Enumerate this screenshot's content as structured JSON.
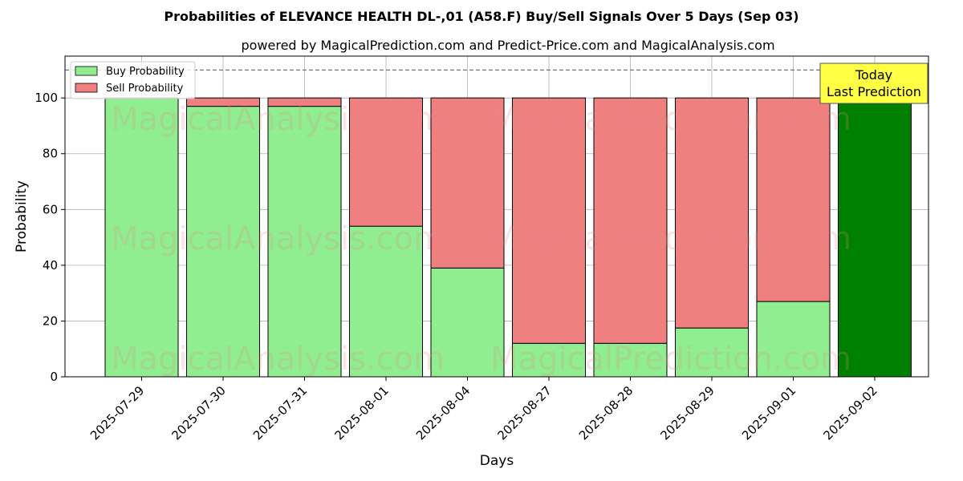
{
  "chart_data": {
    "type": "bar",
    "stacked": true,
    "title": "Probabilities of ELEVANCE HEALTH  DL-,01 (A58.F) Buy/Sell Signals Over 5 Days (Sep 03)",
    "subtitle": "powered by MagicalPrediction.com and Predict-Price.com and MagicalAnalysis.com",
    "xlabel": "Days",
    "ylabel": "Probability",
    "ylim": [
      0,
      115
    ],
    "yticks": [
      0,
      20,
      40,
      60,
      80,
      100
    ],
    "reference_line": 110,
    "grid": true,
    "legend_position": "top-left",
    "categories": [
      "2025-07-29",
      "2025-07-30",
      "2025-07-31",
      "2025-08-01",
      "2025-08-04",
      "2025-08-27",
      "2025-08-28",
      "2025-08-29",
      "2025-09-01",
      "2025-09-02"
    ],
    "series": [
      {
        "name": "Buy Probability",
        "color": "#90ee90",
        "values": [
          100,
          97,
          97,
          54,
          39,
          12,
          12,
          17.5,
          27,
          100
        ]
      },
      {
        "name": "Sell Probability",
        "color": "#f08080",
        "values": [
          0,
          3,
          3,
          46,
          61,
          88,
          88,
          82.5,
          73,
          0
        ]
      }
    ],
    "highlight": {
      "index": 9,
      "color": "#008000"
    },
    "annotation": {
      "line1": "Today",
      "line2": "Last Prediction",
      "background": "#ffff44"
    },
    "watermarks": [
      "MagicalAnalysis.com",
      "MagicalPrediction.com"
    ]
  }
}
